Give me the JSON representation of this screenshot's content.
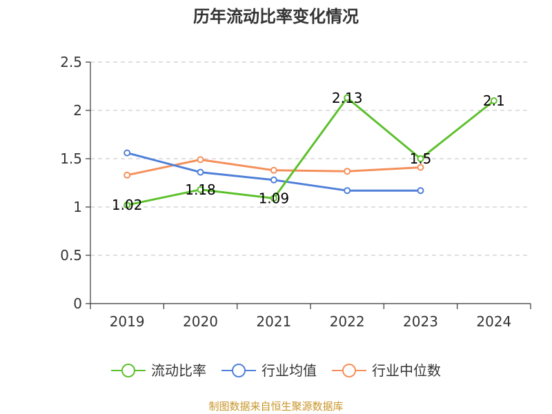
{
  "chart_data": {
    "type": "line",
    "title": "历年流动比率变化情况",
    "categories": [
      "2019",
      "2020",
      "2021",
      "2022",
      "2023",
      "2024"
    ],
    "ylim": [
      0,
      2.5
    ],
    "yticks": [
      "0",
      "0.5",
      "1",
      "1.5",
      "2",
      "2.5"
    ],
    "grid": true,
    "legend_position": "bottom",
    "series": [
      {
        "name": "流动比率",
        "color": "#5cc02c",
        "values": [
          1.02,
          1.18,
          1.09,
          2.13,
          1.5,
          2.1
        ],
        "labels": [
          "1.02",
          "1.18",
          "1.09",
          "2.13",
          "1.5",
          "2.1"
        ]
      },
      {
        "name": "行业均值",
        "color": "#4f7fd9",
        "values": [
          1.56,
          1.36,
          1.28,
          1.17,
          1.17,
          null
        ],
        "labels": []
      },
      {
        "name": "行业中位数",
        "color": "#f58f5a",
        "values": [
          1.33,
          1.49,
          1.38,
          1.37,
          1.41,
          null
        ],
        "labels": []
      }
    ],
    "source": "制图数据来自恒生聚源数据库"
  }
}
